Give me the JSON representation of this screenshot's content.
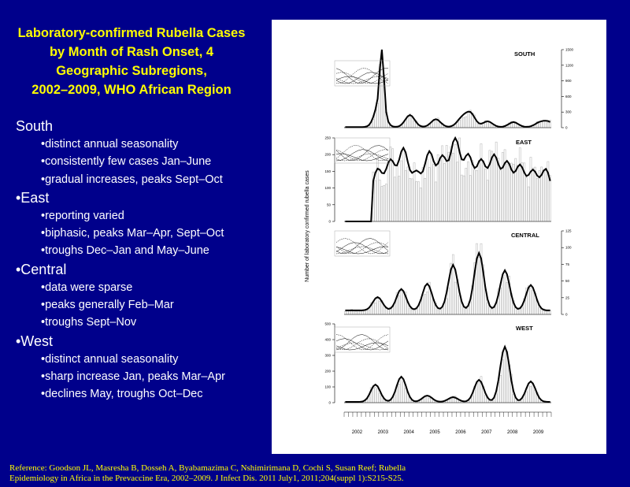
{
  "title_lines": [
    "Laboratory-confirmed Rubella Cases",
    "by Month of Rash Onset, 4",
    "Geographic Subregions,",
    "2002–2009, WHO African Region"
  ],
  "sections": [
    {
      "heading": "South",
      "items": [
        "•distinct annual seasonality",
        "•consistently few cases Jan–June",
        "•gradual increases, peaks Sept–Oct"
      ]
    },
    {
      "heading": "•East",
      "items": [
        "•reporting varied",
        "•biphasic, peaks Mar–Apr, Sept–Oct",
        "•troughs Dec–Jan and May–June"
      ]
    },
    {
      "heading": "•Central",
      "items": [
        "•data were sparse",
        "•peaks generally Feb–Mar",
        "•troughs Sept–Nov"
      ]
    },
    {
      "heading": "•West",
      "items": [
        "•distinct annual seasonality",
        "•sharp increase Jan, peaks Mar–Apr",
        "•declines May, troughs Oct–Dec"
      ]
    }
  ],
  "reference": [
    "Reference:  Goodson JL, Masresha B, Dosseh A, Byabamazima C, Nshimirimana D, Cochi S, Susan Reef; Rubella",
    "Epidemiology in Africa in the Prevaccine Era, 2002–2009. J Infect Dis. 2011 July1, 2011;204(suppl 1):S215-S25."
  ],
  "chart_data": {
    "type": "bar",
    "ylabel": "Number of laboratory confirmed rubella cases",
    "years": [
      "2002",
      "2003",
      "2004",
      "2005",
      "2006",
      "2007",
      "2008",
      "2009"
    ],
    "panels": [
      {
        "name": "SOUTH",
        "axis_side": "right",
        "ylim": [
          0,
          1500
        ],
        "ticks": [
          0,
          300,
          600,
          900,
          1200,
          1500
        ],
        "peaks": [
          [
            17,
            1100
          ],
          [
            16,
            500
          ],
          [
            30,
            230
          ],
          [
            42,
            150
          ],
          [
            54,
            160
          ],
          [
            58,
            260
          ],
          [
            66,
            110
          ],
          [
            78,
            95
          ],
          [
            90,
            80
          ],
          [
            94,
            100
          ]
        ],
        "base": 12
      },
      {
        "name": "EAST",
        "axis_side": "left",
        "ylim": [
          0,
          250
        ],
        "ticks": [
          0,
          50,
          100,
          150,
          200,
          250
        ],
        "peaks": [
          [
            15,
            100
          ],
          [
            21,
            125
          ],
          [
            27,
            160
          ],
          [
            33,
            90
          ],
          [
            39,
            150
          ],
          [
            45,
            135
          ],
          [
            51,
            190
          ],
          [
            57,
            140
          ],
          [
            63,
            125
          ],
          [
            69,
            140
          ],
          [
            75,
            120
          ],
          [
            81,
            110
          ],
          [
            87,
            95
          ],
          [
            93,
            100
          ]
        ],
        "base": 55,
        "start": 13
      },
      {
        "name": "CENTRAL",
        "axis_side": "right",
        "ylim": [
          0,
          125
        ],
        "ticks": [
          0,
          25,
          50,
          75,
          100,
          125
        ],
        "peaks": [
          [
            15,
            20
          ],
          [
            26,
            32
          ],
          [
            38,
            40
          ],
          [
            50,
            68
          ],
          [
            62,
            86
          ],
          [
            74,
            60
          ],
          [
            86,
            38
          ]
        ],
        "base": 6
      },
      {
        "name": "WEST",
        "axis_side": "left",
        "ylim": [
          0,
          500
        ],
        "ticks": [
          0,
          100,
          200,
          300,
          400,
          500
        ],
        "peaks": [
          [
            14,
            110
          ],
          [
            26,
            160
          ],
          [
            38,
            40
          ],
          [
            50,
            30
          ],
          [
            62,
            140
          ],
          [
            74,
            350
          ],
          [
            86,
            130
          ]
        ],
        "base": 5
      }
    ]
  }
}
